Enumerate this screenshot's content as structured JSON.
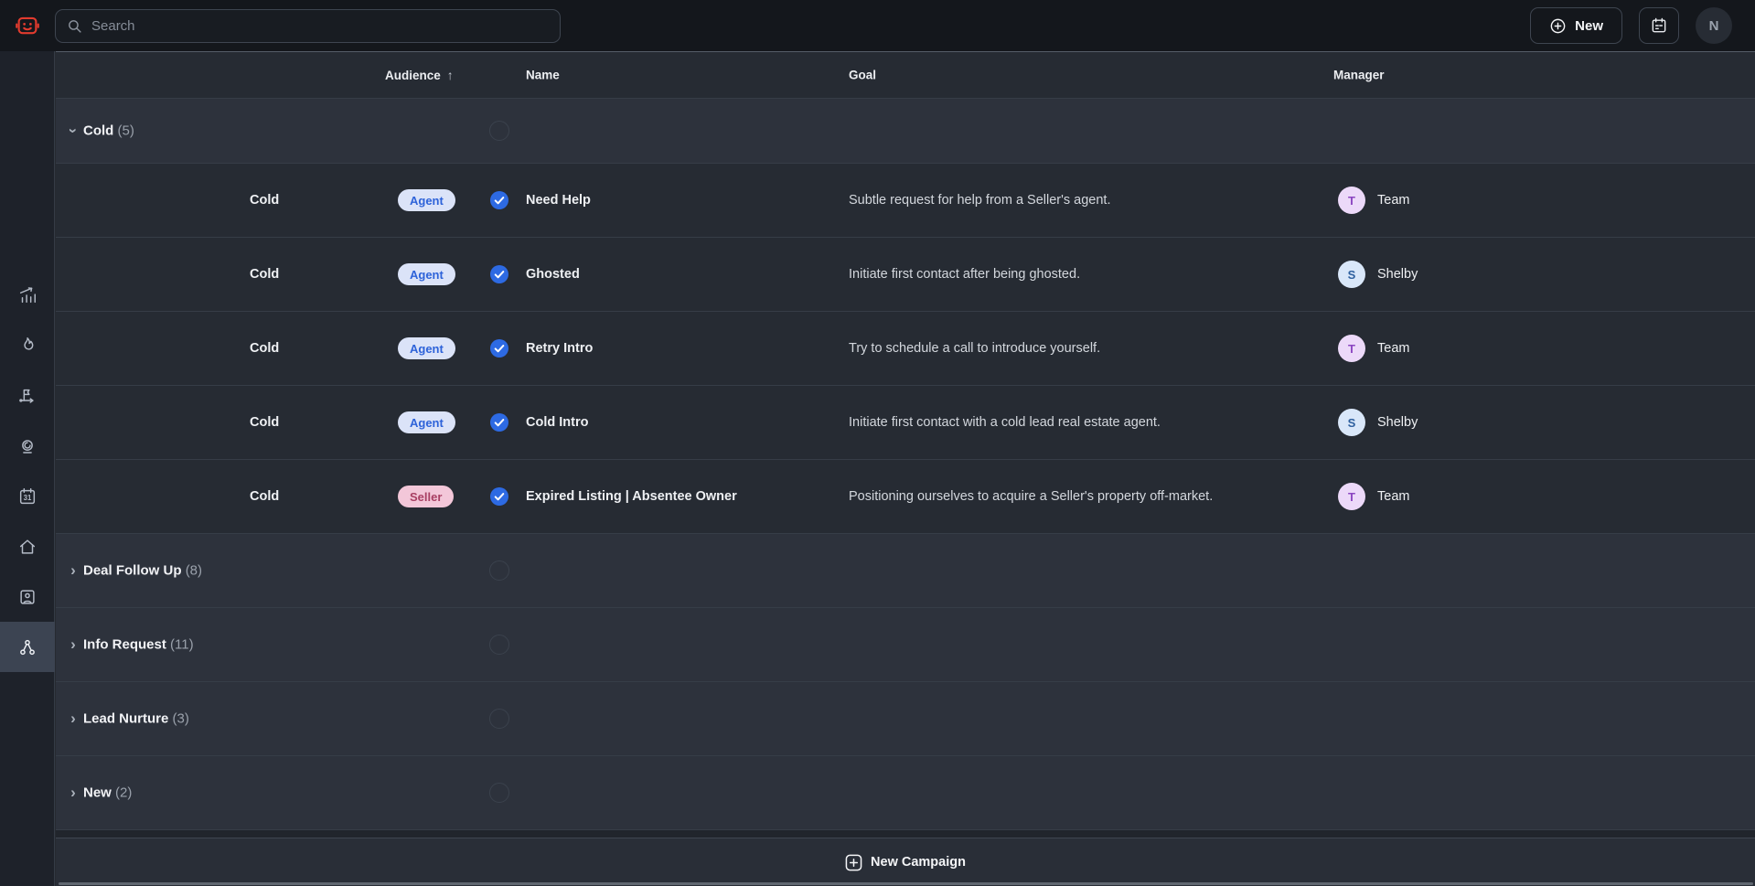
{
  "topbar": {
    "search_placeholder": "Search",
    "new_button_label": "New",
    "avatar_initial": "N"
  },
  "header": {
    "audience": "Audience",
    "sort_arrow": "↑",
    "name": "Name",
    "goal": "Goal",
    "manager": "Manager"
  },
  "sidebar": {
    "items": [
      {
        "icon": "chart-icon",
        "active": false
      },
      {
        "icon": "flame-icon",
        "active": false
      },
      {
        "icon": "flag-icon",
        "active": false
      },
      {
        "icon": "bell-icon",
        "active": false
      },
      {
        "icon": "calendar-31-icon",
        "active": false
      },
      {
        "icon": "home-icon",
        "active": false
      },
      {
        "icon": "contact-card-icon",
        "active": false
      },
      {
        "icon": "workflow-icon",
        "active": true
      }
    ]
  },
  "badges": {
    "Agent": {
      "bg": "#dbe3f8",
      "fg": "#2e63d9"
    },
    "Seller": {
      "bg": "#f3c7d9",
      "fg": "#a83f63"
    }
  },
  "managers": {
    "Team": {
      "letter": "T",
      "bg": "#ecd9f9",
      "fg": "#8b46c1"
    },
    "Shelby": {
      "letter": "S",
      "bg": "#d9e7f9",
      "fg": "#2d5f9e"
    }
  },
  "table": {
    "groups": [
      {
        "label": "Cold",
        "count": 5,
        "expanded": true,
        "rows": [
          {
            "audience": "Cold",
            "badge": "Agent",
            "checked": true,
            "name": "Need Help",
            "goal": "Subtle request for help from a Seller's agent.",
            "manager": "Team"
          },
          {
            "audience": "Cold",
            "badge": "Agent",
            "checked": true,
            "name": "Ghosted",
            "goal": "Initiate first contact after being ghosted.",
            "manager": "Shelby"
          },
          {
            "audience": "Cold",
            "badge": "Agent",
            "checked": true,
            "name": "Retry Intro",
            "goal": "Try to schedule a call to introduce yourself.",
            "manager": "Team"
          },
          {
            "audience": "Cold",
            "badge": "Agent",
            "checked": true,
            "name": "Cold Intro",
            "goal": "Initiate first contact with a cold lead real estate agent.",
            "manager": "Shelby"
          },
          {
            "audience": "Cold",
            "badge": "Seller",
            "checked": true,
            "name": "Expired Listing | Absentee Owner",
            "goal": "Positioning ourselves to acquire a Seller's property off-market.",
            "manager": "Team"
          }
        ]
      },
      {
        "label": "Deal Follow Up",
        "count": 8,
        "expanded": false,
        "rows": []
      },
      {
        "label": "Info Request",
        "count": 11,
        "expanded": false,
        "rows": []
      },
      {
        "label": "Lead Nurture",
        "count": 3,
        "expanded": false,
        "rows": []
      },
      {
        "label": "New",
        "count": 2,
        "expanded": false,
        "rows": []
      }
    ]
  },
  "footer": {
    "new_campaign_label": "New Campaign"
  },
  "colors": {
    "topbar_bg": "#14171c",
    "sidebar_bg": "#1e222a",
    "row_bg": "#262b33",
    "group_row_bg": "#2d323c",
    "accent_blue": "#2d6ae3",
    "logo_red": "#e23b2e"
  }
}
